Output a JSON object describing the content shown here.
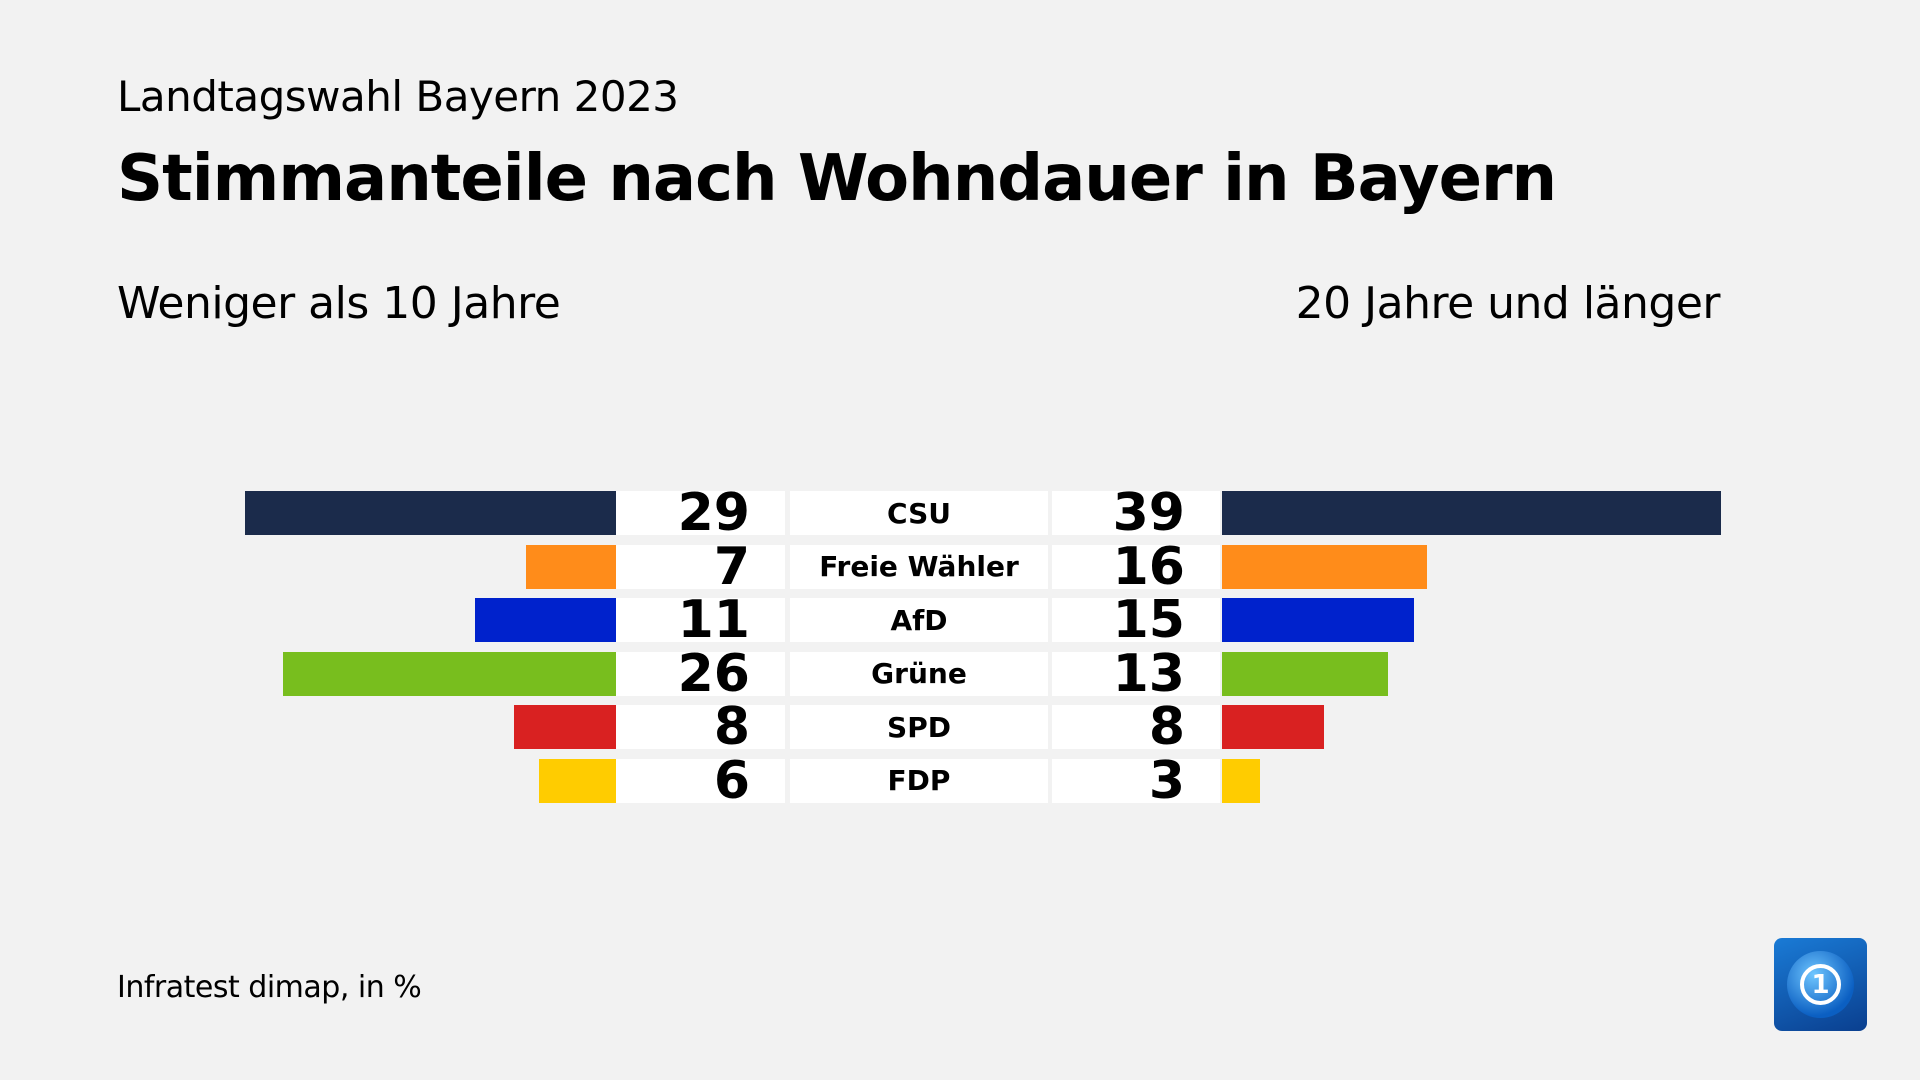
{
  "header": {
    "subtitle": "Landtagswahl Bayern 2023",
    "title": "Stimmanteile nach Wohndauer in Bayern",
    "left_group": "Weniger als 10 Jahre",
    "right_group": "20 Jahre und länger"
  },
  "footer": {
    "source": "Infratest dimap, in %"
  },
  "logo": {
    "text": "1"
  },
  "chart_data": {
    "type": "bar",
    "orientation": "horizontal-butterfly",
    "categories": [
      "CSU",
      "Freie Wähler",
      "AfD",
      "Grüne",
      "SPD",
      "FDP"
    ],
    "colors": [
      "#1b2b4b",
      "#ff8c1a",
      "#0022cc",
      "#78be1e",
      "#d92121",
      "#ffcc00"
    ],
    "series": [
      {
        "name": "Weniger als 10 Jahre",
        "values": [
          29,
          7,
          11,
          26,
          8,
          6
        ]
      },
      {
        "name": "20 Jahre und länger",
        "values": [
          39,
          16,
          15,
          13,
          8,
          3
        ]
      }
    ],
    "unit": "%"
  }
}
